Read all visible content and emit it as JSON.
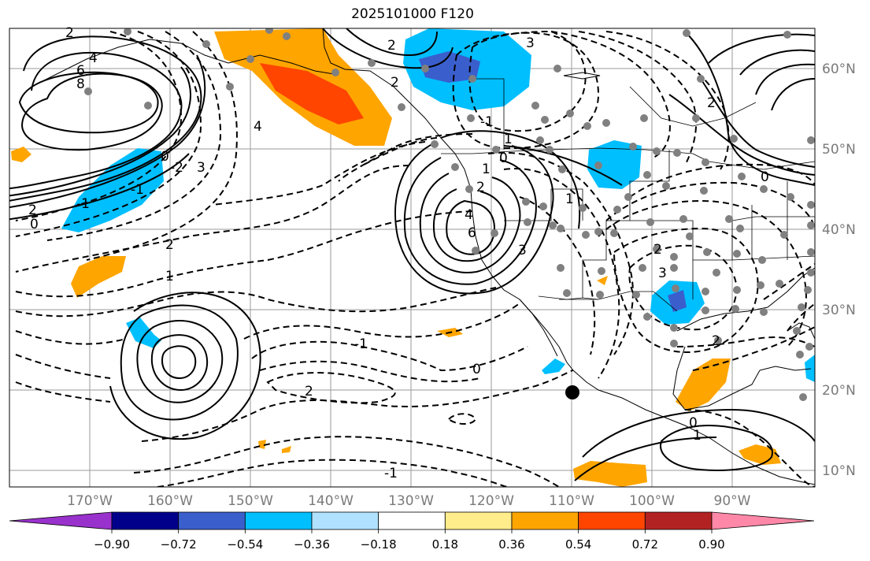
{
  "title": "2025101000 F120",
  "lon_labels": [
    "170°W",
    "160°W",
    "150°W",
    "140°W",
    "130°W",
    "120°W",
    "110°W",
    "100°W",
    "90°W"
  ],
  "lat_labels": [
    "60°N",
    "50°N",
    "40°N",
    "30°N",
    "20°N",
    "10°N"
  ],
  "colorbar": {
    "ticks": [
      "−0.90",
      "−0.72",
      "−0.54",
      "−0.36",
      "−0.18",
      "0.18",
      "0.36",
      "0.54",
      "0.72",
      "0.90"
    ],
    "colors": [
      "#9932CC",
      "#00008B",
      "#3A5FCD",
      "#00BFFF",
      "#B0E2FF",
      "#FFFFFF",
      "#FFEC8B",
      "#FFA500",
      "#FF4500",
      "#B22222",
      "#FF88A8"
    ]
  },
  "contour_labels": [
    "4",
    "6",
    "8",
    "2",
    "0",
    "-2",
    "-1",
    "3",
    "2",
    "0",
    "-1",
    "4",
    "2",
    "1",
    "-1",
    "0",
    "2",
    "4",
    "6",
    "3",
    "2",
    "1",
    "1",
    "3",
    "2",
    "2",
    "0",
    "-1",
    "2",
    "1",
    "0",
    "1",
    "-1",
    "0",
    "3",
    "2",
    "2"
  ]
}
